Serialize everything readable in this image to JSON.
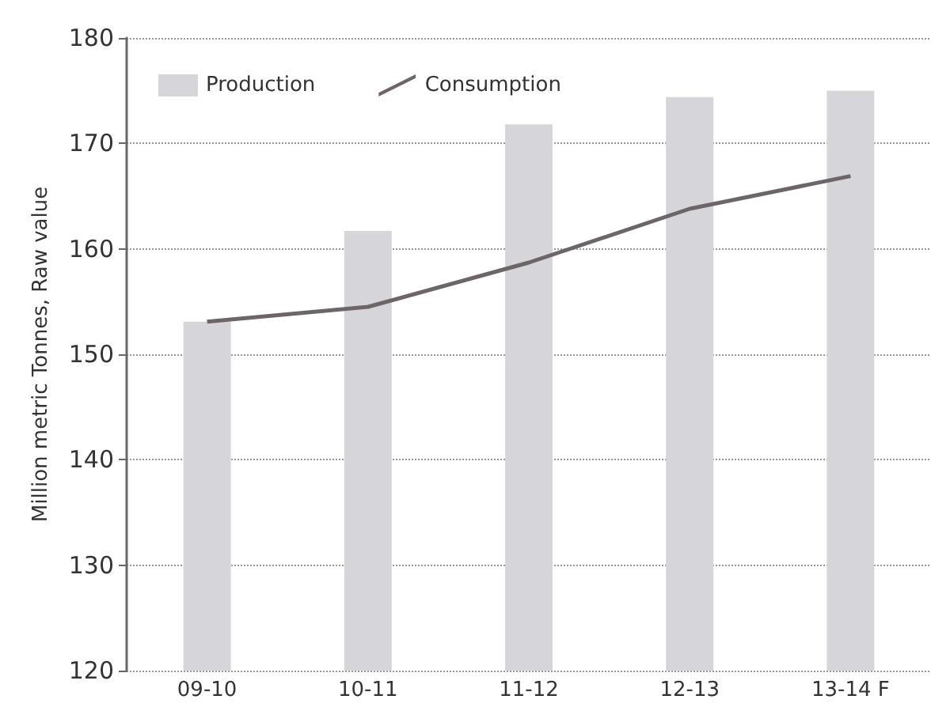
{
  "chart_data": {
    "type": "bar",
    "ylabel": "Million metric Tonnes, Raw value",
    "categories": [
      "09-10",
      "10-11",
      "11-12",
      "12-13",
      "13-14 F"
    ],
    "series": [
      {
        "name": "Production",
        "color": "#d6d5da",
        "values": [
          153.1,
          161.7,
          171.8,
          174.4,
          175.0
        ]
      },
      {
        "name": "Consumption",
        "type": "line",
        "color": "#6e6569",
        "values": [
          153.1,
          154.5,
          158.7,
          163.8,
          166.9
        ]
      }
    ],
    "ylim": [
      120,
      180
    ],
    "yticks": [
      120,
      130,
      140,
      150,
      160,
      170,
      180
    ],
    "grid": "y",
    "legend": "top left",
    "marker": "none"
  }
}
